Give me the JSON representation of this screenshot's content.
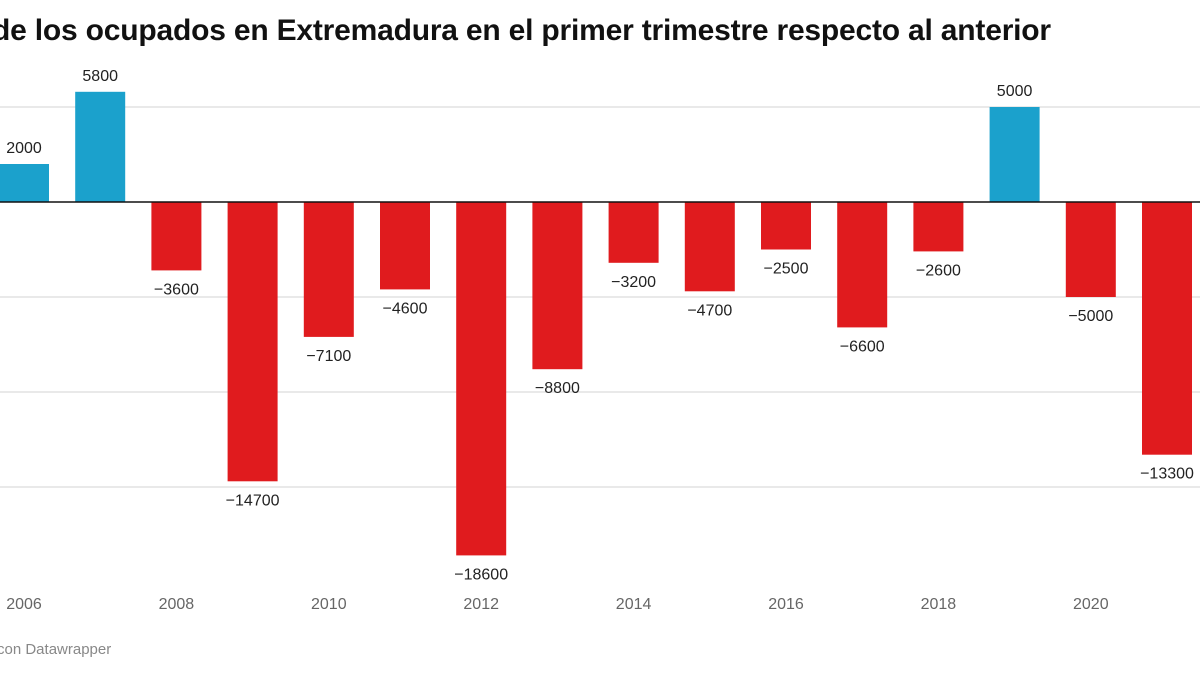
{
  "chart_data": {
    "type": "bar",
    "title": "de los ocupados en Extremadura en el primer trimestre respecto al anterior",
    "xlabel": "",
    "ylabel": "",
    "categories": [
      "2006",
      "2007",
      "2008",
      "2009",
      "2010",
      "2011",
      "2012",
      "2013",
      "2014",
      "2015",
      "2016",
      "2017",
      "2018",
      "2019",
      "2020",
      "2021"
    ],
    "values": [
      2000,
      5800,
      -3600,
      -14700,
      -7100,
      -4600,
      -18600,
      -8800,
      -3200,
      -4700,
      -2500,
      -6600,
      -2600,
      5000,
      -5000,
      -13300
    ],
    "value_labels": [
      "2000",
      "5800",
      "−3600",
      "−14700",
      "−7100",
      "−4600",
      "−18600",
      "−8800",
      "−3200",
      "−4700",
      "−2500",
      "−6600",
      "−2600",
      "5000",
      "−5000",
      "−13300"
    ],
    "x_tick_labels": [
      "2006",
      "2008",
      "2010",
      "2012",
      "2014",
      "2016",
      "2018",
      "2020"
    ],
    "gridlines_y": [
      5000,
      0,
      -5000,
      -10000,
      -15000
    ],
    "grid": true,
    "ylim": [
      -20000,
      7000
    ],
    "colors": {
      "positive": "#1ba1cc",
      "negative": "#e01b1e",
      "zero_line": "#111111",
      "grid": "#e2e2e2"
    },
    "legend": "none"
  },
  "footer": {
    "credit": "con Datawrapper"
  }
}
